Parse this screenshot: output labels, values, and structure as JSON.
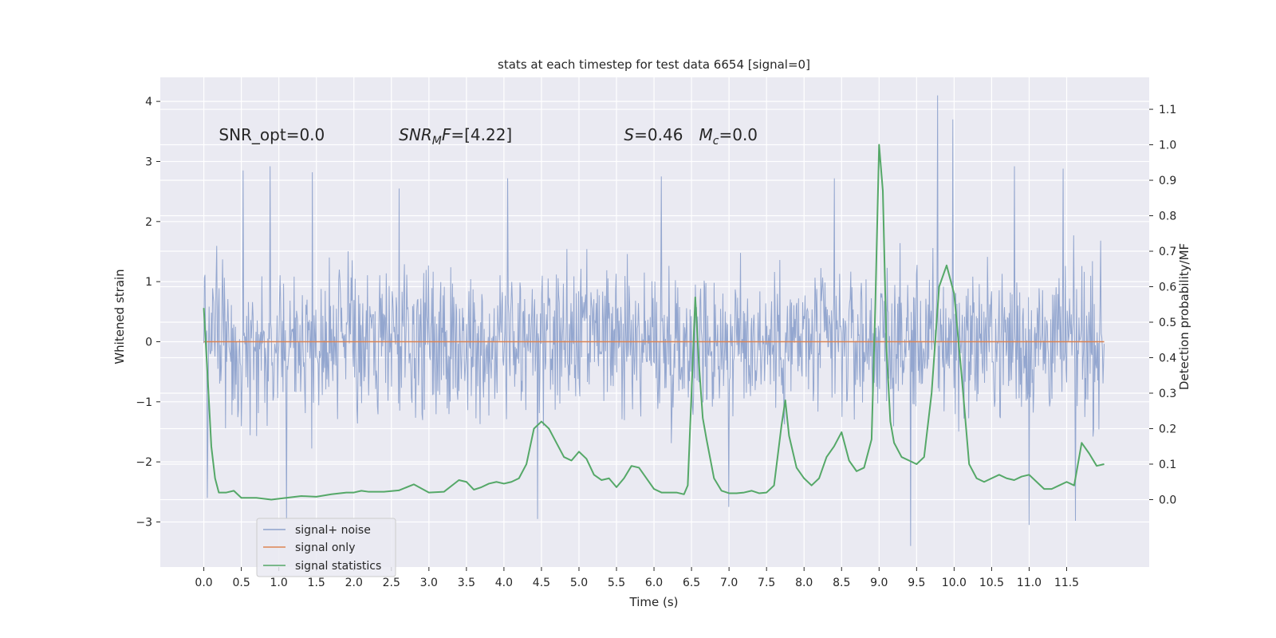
{
  "chart_data": {
    "type": "line",
    "title": "stats at each timestep for test data 6654 [signal=0]",
    "xlabel": "Time (s)",
    "ylabel": "Whitened strain",
    "ylabel_right": "Detection probability/MF",
    "xlim": [
      -0.58,
      12.6
    ],
    "ylim": [
      -3.75,
      4.4
    ],
    "ylim_right": [
      -0.19,
      1.19
    ],
    "x_ticks": [
      0.0,
      0.5,
      1.0,
      1.5,
      2.0,
      2.5,
      3.0,
      3.5,
      4.0,
      4.5,
      5.0,
      5.5,
      6.0,
      6.5,
      7.0,
      7.5,
      8.0,
      8.5,
      9.0,
      9.5,
      10.0,
      10.5,
      11.0,
      11.5
    ],
    "x_tick_labels": [
      "0.0",
      "0.5",
      "1.0",
      "1.5",
      "2.0",
      "2.5",
      "3.0",
      "3.5",
      "4.0",
      "4.5",
      "5.0",
      "5.5",
      "6.0",
      "6.5",
      "7.0",
      "7.5",
      "8.0",
      "8.5",
      "9.0",
      "9.5",
      "10.0",
      "10.5",
      "11.0",
      "11.5"
    ],
    "y_ticks": [
      -3,
      -2,
      -1,
      0,
      1,
      2,
      3,
      4
    ],
    "y_tick_labels": [
      "−3",
      "−2",
      "−1",
      "0",
      "1",
      "2",
      "3",
      "4"
    ],
    "y_right_ticks": [
      0.0,
      0.1,
      0.2,
      0.3,
      0.4,
      0.5,
      0.6,
      0.7,
      0.8,
      0.9,
      1.0,
      1.1
    ],
    "y_right_tick_labels": [
      "0.0",
      "0.1",
      "0.2",
      "0.3",
      "0.4",
      "0.5",
      "0.6",
      "0.7",
      "0.8",
      "0.9",
      "1.0",
      "1.1"
    ],
    "grid": true,
    "legend_position": "lower-left",
    "annotations": [
      {
        "text": "SNR_opt=0.0",
        "x": 0.2,
        "y": 3.35,
        "italic_parts": false
      },
      {
        "prefix": "",
        "italic": "SNR",
        "sub": "M",
        "italic2": "F",
        "suffix": "=[4.22]",
        "x": 2.6,
        "y": 3.35
      },
      {
        "italic": "S",
        "suffix": "=0.46",
        "x": 5.6,
        "y": 3.35
      },
      {
        "italic": "M",
        "sub": "c",
        "suffix": "=0.0",
        "x": 6.6,
        "y": 3.35
      }
    ],
    "series": [
      {
        "name": "signal+ noise",
        "color": "#8ea2cc",
        "axis": "left",
        "x_range": [
          0.0,
          12.0
        ],
        "n_points": 1536,
        "envelope_note": "dense noise, body roughly between -1.5 and 1.5",
        "peaks": [
          {
            "x": 0.52,
            "y": 2.85
          },
          {
            "x": 0.88,
            "y": 2.92
          },
          {
            "x": 1.45,
            "y": 2.82
          },
          {
            "x": 2.6,
            "y": 2.55
          },
          {
            "x": 4.05,
            "y": 2.72
          },
          {
            "x": 6.1,
            "y": 2.75
          },
          {
            "x": 8.4,
            "y": 2.72
          },
          {
            "x": 9.78,
            "y": 4.1
          },
          {
            "x": 9.98,
            "y": 3.7
          },
          {
            "x": 10.8,
            "y": 2.92
          },
          {
            "x": 11.45,
            "y": 2.88
          }
        ],
        "troughs": [
          {
            "x": 0.05,
            "y": -2.6
          },
          {
            "x": 1.1,
            "y": -2.95
          },
          {
            "x": 4.45,
            "y": -2.95
          },
          {
            "x": 7.0,
            "y": -2.75
          },
          {
            "x": 9.42,
            "y": -3.4
          },
          {
            "x": 11.0,
            "y": -3.05
          },
          {
            "x": 11.62,
            "y": -2.98
          }
        ]
      },
      {
        "name": "signal only",
        "color": "#dd8452",
        "axis": "left",
        "x": [
          0.0,
          12.0
        ],
        "y": [
          0.0,
          0.0
        ]
      },
      {
        "name": "signal statistics",
        "color": "#55a868",
        "axis": "right",
        "x": [
          0.0,
          0.05,
          0.1,
          0.15,
          0.2,
          0.3,
          0.4,
          0.5,
          0.7,
          0.9,
          1.1,
          1.3,
          1.5,
          1.7,
          1.9,
          2.0,
          2.1,
          2.2,
          2.4,
          2.6,
          2.8,
          3.0,
          3.2,
          3.4,
          3.5,
          3.6,
          3.7,
          3.8,
          3.9,
          4.0,
          4.1,
          4.2,
          4.3,
          4.4,
          4.5,
          4.6,
          4.7,
          4.8,
          4.9,
          5.0,
          5.1,
          5.2,
          5.3,
          5.4,
          5.5,
          5.6,
          5.7,
          5.8,
          5.9,
          6.0,
          6.1,
          6.2,
          6.3,
          6.4,
          6.45,
          6.5,
          6.55,
          6.6,
          6.65,
          6.7,
          6.8,
          6.9,
          7.0,
          7.1,
          7.2,
          7.3,
          7.4,
          7.5,
          7.6,
          7.7,
          7.75,
          7.8,
          7.9,
          8.0,
          8.1,
          8.2,
          8.3,
          8.4,
          8.5,
          8.6,
          8.7,
          8.8,
          8.9,
          8.95,
          9.0,
          9.05,
          9.1,
          9.15,
          9.2,
          9.3,
          9.4,
          9.5,
          9.6,
          9.7,
          9.8,
          9.9,
          10.0,
          10.1,
          10.2,
          10.3,
          10.4,
          10.5,
          10.6,
          10.7,
          10.8,
          10.9,
          11.0,
          11.1,
          11.2,
          11.3,
          11.4,
          11.5,
          11.6,
          11.7,
          11.8,
          11.9,
          12.0
        ],
        "y": [
          0.54,
          0.35,
          0.15,
          0.06,
          0.02,
          0.02,
          0.025,
          0.005,
          0.005,
          0.0,
          0.005,
          0.01,
          0.008,
          0.015,
          0.02,
          0.02,
          0.025,
          0.022,
          0.022,
          0.026,
          0.043,
          0.02,
          0.022,
          0.055,
          0.05,
          0.028,
          0.035,
          0.045,
          0.05,
          0.045,
          0.05,
          0.06,
          0.1,
          0.2,
          0.22,
          0.2,
          0.16,
          0.12,
          0.11,
          0.135,
          0.115,
          0.07,
          0.055,
          0.06,
          0.035,
          0.06,
          0.095,
          0.09,
          0.06,
          0.03,
          0.02,
          0.02,
          0.02,
          0.015,
          0.04,
          0.3,
          0.57,
          0.38,
          0.23,
          0.17,
          0.06,
          0.025,
          0.018,
          0.018,
          0.02,
          0.025,
          0.018,
          0.02,
          0.04,
          0.21,
          0.28,
          0.18,
          0.09,
          0.06,
          0.04,
          0.06,
          0.12,
          0.15,
          0.19,
          0.11,
          0.08,
          0.09,
          0.17,
          0.55,
          1.0,
          0.87,
          0.42,
          0.22,
          0.16,
          0.12,
          0.11,
          0.1,
          0.12,
          0.3,
          0.6,
          0.66,
          0.58,
          0.35,
          0.1,
          0.06,
          0.05,
          0.06,
          0.07,
          0.06,
          0.055,
          0.065,
          0.07,
          0.05,
          0.03,
          0.03,
          0.04,
          0.05,
          0.04,
          0.16,
          0.13,
          0.095,
          0.1
        ]
      }
    ]
  }
}
